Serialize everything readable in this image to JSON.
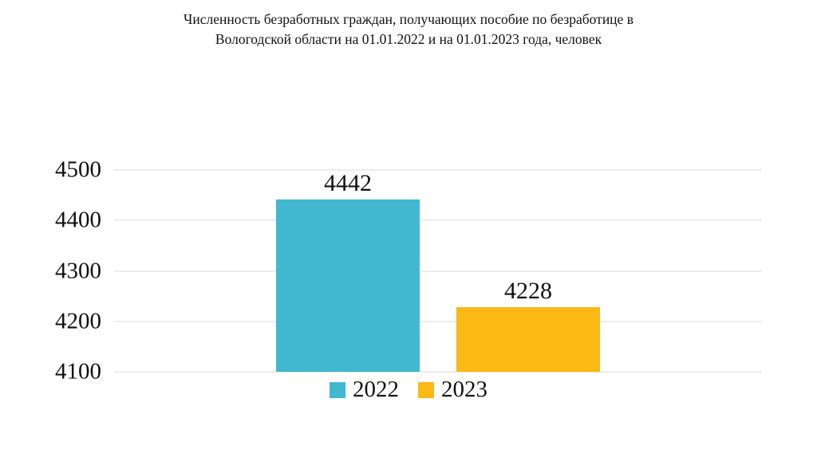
{
  "chart_data": {
    "type": "bar",
    "title": "Численность безработных граждан, получающих пособие по безработице в Вологодской области на 01.01.2022 и на 01.01.2023 года, человек",
    "categories": [
      "2022",
      "2023"
    ],
    "values": [
      4442,
      4228
    ],
    "colors": [
      "#41b8ce",
      "#fcb813"
    ],
    "ylim": [
      4100,
      4500
    ],
    "yticks": [
      4100,
      4200,
      4300,
      4400,
      4500
    ],
    "grid": true,
    "legend": [
      "2022",
      "2023"
    ],
    "legend_position": "bottom"
  }
}
